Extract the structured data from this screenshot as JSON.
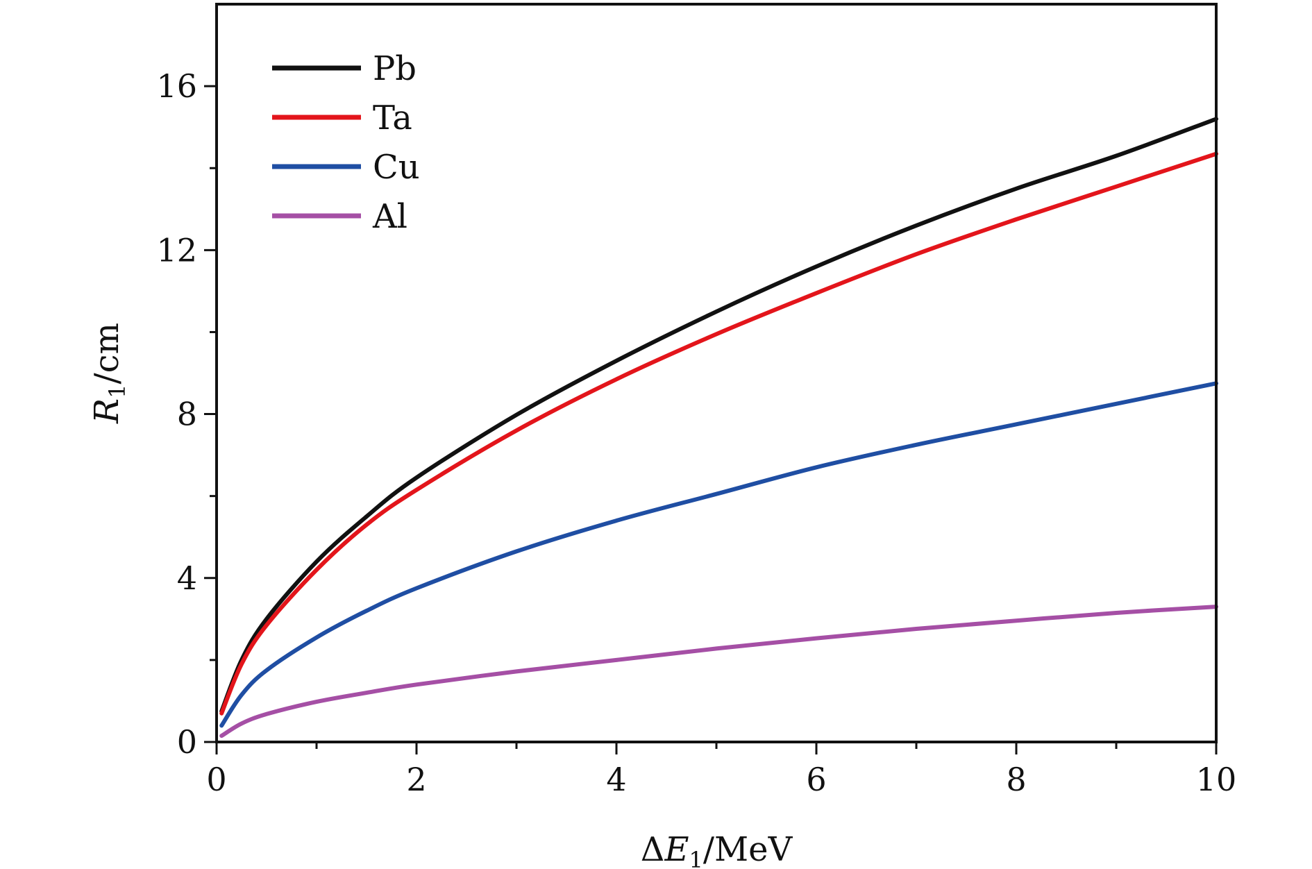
{
  "chart_data": {
    "type": "line",
    "xlabel": "ΔE1/MeV",
    "xlabel_parts": {
      "prefix": "Δ",
      "var": "E",
      "sub": "1",
      "unit": "/MeV"
    },
    "ylabel": "R1/cm",
    "ylabel_parts": {
      "var": "R",
      "sub": "1",
      "unit": "/cm"
    },
    "xlim": [
      0,
      10
    ],
    "ylim": [
      0,
      18
    ],
    "x_ticks": [
      0,
      2,
      4,
      6,
      8,
      10
    ],
    "x_tick_labels": [
      "0",
      "2",
      "4",
      "6",
      "8",
      "10"
    ],
    "x_minor_ticks": [
      1,
      3,
      5,
      7,
      9
    ],
    "y_ticks": [
      0,
      4,
      8,
      12,
      16
    ],
    "y_tick_labels": [
      "0",
      "4",
      "8",
      "12",
      "16"
    ],
    "y_minor_ticks": [
      2,
      6,
      10,
      14
    ],
    "grid": false,
    "legend_position": "top-left",
    "x": [
      0.05,
      0.25,
      0.5,
      1,
      1.5,
      2,
      3,
      4,
      5,
      6,
      7,
      8,
      9,
      10
    ],
    "series": [
      {
        "name": "Pb",
        "color": "#111111",
        "values": [
          0.75,
          2.0,
          3.0,
          4.4,
          5.5,
          6.45,
          7.98,
          9.3,
          10.5,
          11.6,
          12.6,
          13.5,
          14.3,
          15.2
        ]
      },
      {
        "name": "Ta",
        "color": "#e3151b",
        "values": [
          0.7,
          1.9,
          2.85,
          4.2,
          5.3,
          6.15,
          7.6,
          8.85,
          9.95,
          10.95,
          11.9,
          12.75,
          13.55,
          14.35
        ]
      },
      {
        "name": "Cu",
        "color": "#1f4ea3",
        "values": [
          0.4,
          1.15,
          1.75,
          2.55,
          3.2,
          3.75,
          4.65,
          5.4,
          6.05,
          6.7,
          7.25,
          7.75,
          8.25,
          8.75
        ]
      },
      {
        "name": "Al",
        "color": "#a54fa5",
        "values": [
          0.15,
          0.45,
          0.68,
          0.98,
          1.2,
          1.4,
          1.72,
          2.0,
          2.28,
          2.53,
          2.76,
          2.96,
          3.15,
          3.3
        ]
      }
    ]
  }
}
